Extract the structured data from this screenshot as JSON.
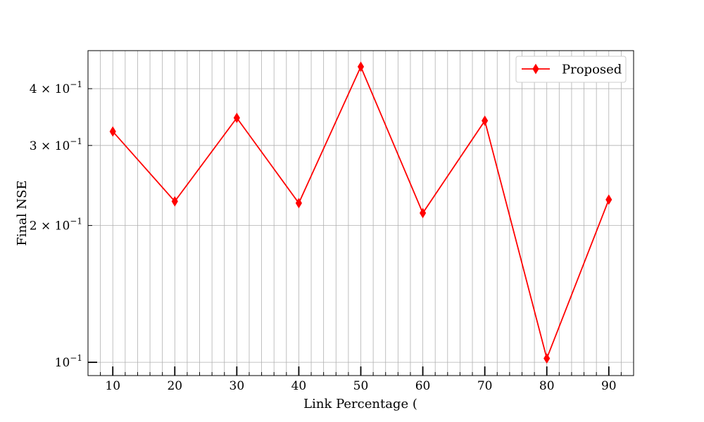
{
  "chart_data": {
    "type": "line",
    "xlabel": "Link Percentage (",
    "ylabel": "Final NSE",
    "x": [
      10,
      20,
      30,
      40,
      50,
      60,
      70,
      80,
      90
    ],
    "series": [
      {
        "name": "Proposed",
        "values": [
          0.322,
          0.226,
          0.345,
          0.224,
          0.447,
          0.213,
          0.34,
          0.102,
          0.228
        ],
        "color": "#ff0000",
        "marker": "diamond"
      }
    ],
    "xlim": [
      6,
      94
    ],
    "ylim": [
      0.0935,
      0.485
    ],
    "yscale": "log",
    "xticks": [
      "10",
      "20",
      "30",
      "40",
      "50",
      "60",
      "70",
      "80",
      "90"
    ],
    "yticks": [
      {
        "value": 0.1,
        "label": "10",
        "exp": "−1"
      },
      {
        "value": 0.2,
        "label": "2 × 10",
        "exp": "−1"
      },
      {
        "value": 0.3,
        "label": "3 × 10",
        "exp": "−1"
      },
      {
        "value": 0.4,
        "label": "4 × 10",
        "exp": "−1"
      }
    ],
    "grid": true,
    "legend_position": "top-right"
  }
}
